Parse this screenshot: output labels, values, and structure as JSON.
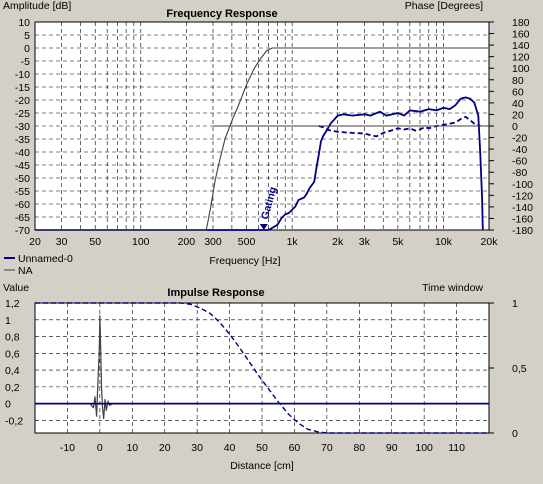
{
  "colors": {
    "background": "#d4d0c8",
    "plot_bg": "#ffffff",
    "grid": "#000000",
    "magnitude_series": "#000080",
    "na_series": "#404040",
    "gating_marker": "#000080"
  },
  "chart_data": [
    {
      "type": "line",
      "title": "Frequency Response",
      "ylabel": "Amplitude [dB]",
      "y2label": "Phase [Degrees]",
      "xlabel": "Frequency [Hz]",
      "xscale": "log",
      "xlim": [
        20,
        20000
      ],
      "ylim": [
        -70,
        10
      ],
      "y2lim": [
        -180,
        180
      ],
      "x_ticks": [
        "20",
        "30",
        "50",
        "100",
        "200",
        "300",
        "500",
        "1k",
        "2k",
        "3k",
        "5k",
        "10k",
        "20k"
      ],
      "x_tick_values": [
        20,
        30,
        50,
        100,
        200,
        300,
        500,
        1000,
        2000,
        3000,
        5000,
        10000,
        20000
      ],
      "y_ticks": [
        10,
        5,
        0,
        -5,
        -10,
        -15,
        -20,
        -25,
        -30,
        -35,
        -40,
        -45,
        -50,
        -55,
        -60,
        -65,
        -70
      ],
      "y2_ticks": [
        180,
        160,
        140,
        120,
        100,
        80,
        60,
        40,
        20,
        0,
        -20,
        -40,
        -60,
        -80,
        -100,
        -120,
        -140,
        -160,
        -180
      ],
      "grid": true,
      "legend_position": "bottom-left",
      "legend": [
        "Unnamed-0",
        "NA"
      ],
      "annotation": {
        "text": "Gating",
        "x": 650
      },
      "series": [
        {
          "name": "Unnamed-0",
          "axis": "left",
          "style": "solid",
          "color": "#000080",
          "points": [
            [
              20,
              -72
            ],
            [
              600,
              -72
            ],
            [
              700,
              -70.5
            ],
            [
              800,
              -68
            ],
            [
              850,
              -65.5
            ],
            [
              900,
              -64
            ],
            [
              950,
              -63.5
            ],
            [
              1050,
              -61
            ],
            [
              1100,
              -58.5
            ],
            [
              1200,
              -57.5
            ],
            [
              1250,
              -56
            ],
            [
              1300,
              -54
            ],
            [
              1400,
              -51.5
            ],
            [
              1450,
              -46
            ],
            [
              1500,
              -41
            ],
            [
              1550,
              -36
            ],
            [
              1600,
              -34
            ],
            [
              1700,
              -31.5
            ],
            [
              1800,
              -29
            ],
            [
              1900,
              -27.5
            ],
            [
              2000,
              -26
            ],
            [
              2200,
              -25.5
            ],
            [
              2500,
              -26
            ],
            [
              3000,
              -25.5
            ],
            [
              3300,
              -26
            ],
            [
              3800,
              -24.5
            ],
            [
              4200,
              -26
            ],
            [
              5000,
              -25
            ],
            [
              5500,
              -26
            ],
            [
              6000,
              -24
            ],
            [
              7000,
              -24.5
            ],
            [
              8000,
              -23.5
            ],
            [
              9000,
              -24
            ],
            [
              10000,
              -23
            ],
            [
              11000,
              -23.5
            ],
            [
              12000,
              -22
            ],
            [
              13000,
              -19.5
            ],
            [
              14000,
              -19
            ],
            [
              15000,
              -19.5
            ],
            [
              16000,
              -21
            ],
            [
              17000,
              -26
            ],
            [
              17500,
              -40
            ],
            [
              18000,
              -58
            ],
            [
              18200,
              -72
            ]
          ]
        },
        {
          "name": "Unnamed-0 phase",
          "axis": "right",
          "style": "dashed",
          "color": "#000080",
          "points": [
            [
              1500,
              0
            ],
            [
              1600,
              -2
            ],
            [
              1700,
              -6
            ],
            [
              1800,
              -8
            ],
            [
              2000,
              -10
            ],
            [
              2500,
              -12
            ],
            [
              3000,
              -13
            ],
            [
              3300,
              -16
            ],
            [
              3600,
              -18
            ],
            [
              4000,
              -12
            ],
            [
              4500,
              -8
            ],
            [
              5000,
              -4
            ],
            [
              5500,
              -6
            ],
            [
              6000,
              -4
            ],
            [
              6500,
              -8
            ],
            [
              7000,
              -6
            ],
            [
              7500,
              -2
            ],
            [
              8000,
              -4
            ],
            [
              9000,
              0
            ],
            [
              10000,
              2
            ],
            [
              11000,
              4
            ],
            [
              12000,
              6
            ],
            [
              13000,
              12
            ],
            [
              14000,
              16
            ],
            [
              15000,
              10
            ],
            [
              16000,
              4
            ],
            [
              17000,
              2
            ],
            [
              17500,
              0
            ]
          ]
        },
        {
          "name": "NA",
          "axis": "left",
          "style": "solid",
          "color": "#404040",
          "points": [
            [
              20,
              -72
            ],
            [
              270,
              -72
            ],
            [
              275,
              -68
            ],
            [
              290,
              -61
            ],
            [
              310,
              -51
            ],
            [
              330,
              -44
            ],
            [
              360,
              -35
            ],
            [
              400,
              -28
            ],
            [
              450,
              -21
            ],
            [
              500,
              -14
            ],
            [
              560,
              -8
            ],
            [
              620,
              -4
            ],
            [
              680,
              -1
            ],
            [
              740,
              0
            ],
            [
              20000,
              0
            ]
          ]
        },
        {
          "name": "NA phase",
          "axis": "right",
          "style": "solid",
          "color": "#404040",
          "points": [
            [
              300,
              0
            ],
            [
              20000,
              0
            ]
          ]
        }
      ]
    },
    {
      "type": "line",
      "title": "Impulse Response",
      "ylabel": "Value",
      "y2label": "Time window",
      "xlabel": "Distance [cm]",
      "xlim": [
        -20,
        120
      ],
      "ylim": [
        -0.35,
        1.2
      ],
      "y2lim": [
        0,
        1
      ],
      "x_ticks": [
        "-10",
        "0",
        "10",
        "20",
        "30",
        "40",
        "50",
        "60",
        "70",
        "80",
        "90",
        "100",
        "110"
      ],
      "x_tick_values": [
        -10,
        0,
        10,
        20,
        30,
        40,
        50,
        60,
        70,
        80,
        90,
        100,
        110
      ],
      "y_ticks": [
        "1,2",
        "1",
        "0,8",
        "0,6",
        "0,4",
        "0,2",
        "0",
        "-0,2"
      ],
      "y_tick_values": [
        1.2,
        1,
        0.8,
        0.6,
        0.4,
        0.2,
        0,
        -0.2
      ],
      "y2_ticks": [
        "1",
        "0,5",
        "0"
      ],
      "y2_tick_values": [
        1,
        0.5,
        0
      ],
      "grid": true,
      "series": [
        {
          "name": "impulse",
          "axis": "left",
          "style": "solid",
          "color": "#404040",
          "points": [
            [
              -20,
              0
            ],
            [
              -3,
              0
            ],
            [
              -2,
              -0.05
            ],
            [
              -1.5,
              0.08
            ],
            [
              -1,
              -0.15
            ],
            [
              -0.5,
              0.35
            ],
            [
              -0.2,
              0.6
            ],
            [
              0,
              1.05
            ],
            [
              0.2,
              0.75
            ],
            [
              0.5,
              0.2
            ],
            [
              0.8,
              -0.05
            ],
            [
              1.2,
              -0.18
            ],
            [
              1.6,
              0.05
            ],
            [
              2,
              -0.08
            ],
            [
              2.5,
              0.03
            ],
            [
              3,
              -0.02
            ],
            [
              4,
              0
            ],
            [
              120,
              0
            ]
          ]
        },
        {
          "name": "window",
          "axis": "right",
          "style": "dashed",
          "color": "#000080",
          "points": [
            [
              -20,
              1
            ],
            [
              25,
              1
            ],
            [
              28,
              0.99
            ],
            [
              31,
              0.96
            ],
            [
              34,
              0.92
            ],
            [
              37,
              0.85
            ],
            [
              40,
              0.76
            ],
            [
              43,
              0.66
            ],
            [
              46,
              0.55
            ],
            [
              49,
              0.44
            ],
            [
              52,
              0.34
            ],
            [
              55,
              0.24
            ],
            [
              58,
              0.15
            ],
            [
              61,
              0.08
            ],
            [
              64,
              0.03
            ],
            [
              67,
              0.01
            ],
            [
              70,
              0
            ],
            [
              120,
              0
            ]
          ]
        },
        {
          "name": "baseline",
          "axis": "left",
          "style": "solid",
          "color": "#000080",
          "points": [
            [
              -20,
              0
            ],
            [
              120,
              0
            ]
          ]
        }
      ]
    }
  ]
}
